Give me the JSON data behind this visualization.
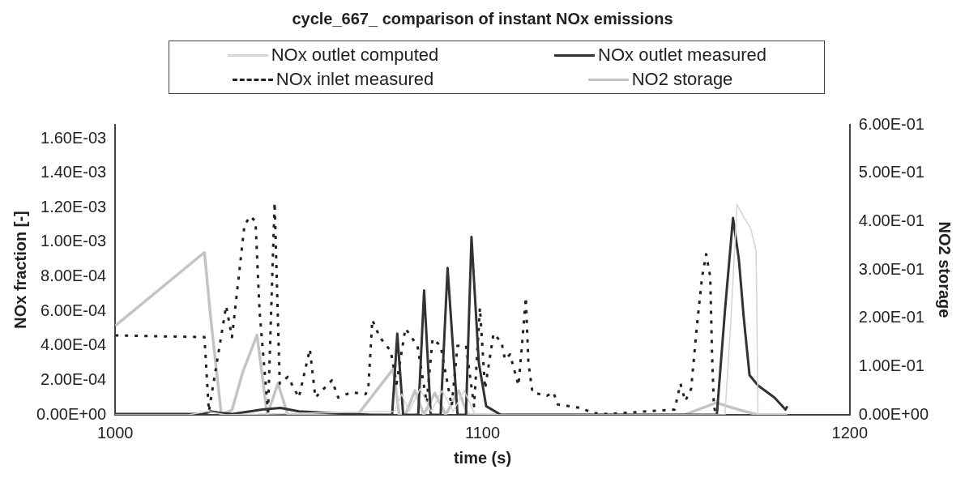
{
  "chart_data": {
    "type": "line",
    "title": "cycle_667_ comparison of instant NOx emissions",
    "xlabel": "time (s)",
    "ylabel": "NOx fraction [-]",
    "y2label": "NO2 storage",
    "xlim": [
      1000,
      1200
    ],
    "xticks": [
      1000,
      1100,
      1200
    ],
    "ylim": [
      0,
      0.00168
    ],
    "yticks": [
      {
        "value": 0,
        "label": "0.00E+00"
      },
      {
        "value": 0.0002,
        "label": "2.00E-04"
      },
      {
        "value": 0.0004,
        "label": "4.00E-04"
      },
      {
        "value": 0.0006,
        "label": "6.00E-04"
      },
      {
        "value": 0.0008,
        "label": "8.00E-04"
      },
      {
        "value": 0.001,
        "label": "1.00E-03"
      },
      {
        "value": 0.0012,
        "label": "1.20E-03"
      },
      {
        "value": 0.0014,
        "label": "1.40E-03"
      },
      {
        "value": 0.0016,
        "label": "1.60E-03"
      }
    ],
    "y2lim": [
      0,
      0.6
    ],
    "y2ticks": [
      {
        "value": 0,
        "label": "0.00E+00"
      },
      {
        "value": 0.1,
        "label": "1.00E-01"
      },
      {
        "value": 0.2,
        "label": "2.00E-01"
      },
      {
        "value": 0.3,
        "label": "3.00E-01"
      },
      {
        "value": 0.4,
        "label": "4.00E-01"
      },
      {
        "value": 0.5,
        "label": "5.00E-01"
      },
      {
        "value": 0.6,
        "label": "6.00E-01"
      }
    ],
    "grid": false,
    "legend": "top",
    "marker": "none",
    "series": [
      {
        "name": "NOx outlet computed",
        "color": "#d4d4d4",
        "line_style": "solid",
        "x": [
          1000,
          1020,
          1025,
          1030,
          1076,
          1078,
          1080,
          1083,
          1086,
          1089,
          1092,
          1095,
          1098,
          1166,
          1167.5,
          1169.3,
          1171,
          1173,
          1174.5,
          1175,
          1183
        ],
        "values": [
          0,
          0,
          2e-05,
          0,
          2e-05,
          0.00012,
          2e-05,
          0.00015,
          2e-05,
          0.00014,
          2e-05,
          0.00014,
          0,
          0,
          0.0005,
          0.00122,
          0.00115,
          0.00108,
          0.00095,
          0,
          0
        ]
      },
      {
        "name": "NOx outlet measured",
        "color": "#333333",
        "line_style": "solid",
        "x": [
          1000,
          1024,
          1026,
          1029,
          1032,
          1040,
          1045,
          1050,
          1058,
          1070,
          1075.4,
          1076.8,
          1078.4,
          1082.5,
          1084.1,
          1085.9,
          1088.6,
          1090.5,
          1093.2,
          1095.5,
          1097,
          1099,
          1101,
          1105,
          1163.8,
          1166,
          1168.2,
          1169.8,
          1171.1,
          1172.7,
          1175,
          1179.5,
          1182.5,
          1183
        ],
        "values": [
          5e-06,
          5e-06,
          2e-05,
          1e-05,
          5e-06,
          3e-05,
          4e-05,
          2e-05,
          1e-05,
          0,
          0,
          0.00047,
          0,
          0,
          0.00072,
          0,
          0,
          0.00085,
          0,
          0,
          0.00103,
          0.0003,
          5e-05,
          0,
          0,
          0.0006,
          0.00114,
          0.0009,
          0.00057,
          0.00023,
          0.00017,
          0.0001,
          3e-05,
          5e-05
        ]
      },
      {
        "name": "NOx inlet measured",
        "color": "#222222",
        "line_style": "dashed",
        "x": [
          1000,
          1024.3,
          1025.5,
          1030.2,
          1031.8,
          1035.2,
          1036.8,
          1038.2,
          1039.3,
          1041.6,
          1043.4,
          1044.8,
          1047,
          1050,
          1053,
          1054.5,
          1059,
          1060.7,
          1064.3,
          1068.2,
          1068.9,
          1070,
          1072,
          1075,
          1076.6,
          1079,
          1082.3,
          1084.8,
          1086.4,
          1088.6,
          1091.6,
          1093.2,
          1095.5,
          1097.7,
          1099.3,
          1100.7,
          1103,
          1105.2,
          1106.1,
          1107.5,
          1109.8,
          1110.9,
          1111.8,
          1112.5,
          1113.6,
          1117.5,
          1119.3,
          1120.5,
          1126.6,
          1130.2,
          1134,
          1152.3,
          1153.9,
          1155.2,
          1156.8,
          1158.4,
          1159.8,
          1160.9,
          1162,
          1162.5,
          1163,
          1163.6
        ],
        "values": [
          0.00046,
          0.00045,
          2e-05,
          0.00063,
          0.00045,
          0.0011,
          0.00115,
          0.00112,
          0.0006,
          2e-05,
          0.00123,
          0.00018,
          0.00022,
          0.0001,
          0.00038,
          0.0001,
          0.0002,
          0.0001,
          0.00013,
          0.00012,
          0.00015,
          0.00055,
          0.00045,
          0.00037,
          0.00018,
          0.0005,
          0.0004,
          7e-05,
          0.00044,
          0.0004,
          5e-05,
          0.0004,
          0.0004,
          5e-05,
          0.00062,
          0.00015,
          0.00047,
          0.00042,
          0.00032,
          0.00035,
          0.00017,
          0.00044,
          0.00068,
          0.0003,
          0.00013,
          0.00011,
          0.00013,
          6e-05,
          4e-05,
          1e-05,
          5e-06,
          3e-05,
          0.00018,
          8e-05,
          0.00015,
          0.00052,
          0.0008,
          0.00093,
          0.0008,
          0.00035,
          5e-05,
          0
        ]
      },
      {
        "name": "NO2 storage",
        "color": "#c4c4c4",
        "line_style": "solid",
        "axis": "y2",
        "x": [
          1000,
          1024.3,
          1026,
          1028.9,
          1031.8,
          1034.8,
          1038.6,
          1041.4,
          1044.3,
          1047,
          1066,
          1075.7,
          1077.3,
          1079,
          1081.6,
          1084,
          1087,
          1090,
          1093.5,
          1096,
          1155,
          1163.6,
          1170,
          1175,
          1183
        ],
        "values": [
          0.184,
          0.336,
          0.2,
          0,
          0.01,
          0.09,
          0.165,
          0,
          0.065,
          0,
          0,
          0.095,
          0,
          0,
          0.05,
          0,
          0.045,
          0,
          0.05,
          0,
          0,
          0.025,
          0.01,
          0,
          0
        ]
      }
    ]
  }
}
